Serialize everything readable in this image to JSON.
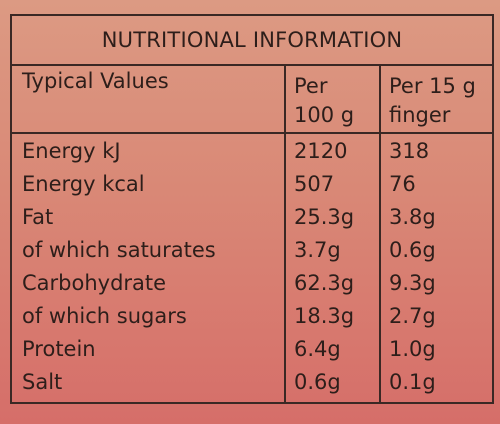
{
  "title": "NUTRITIONAL INFORMATION",
  "header": {
    "col1": "Typical Values",
    "col2_line1": "Per",
    "col2_line2": "100 g",
    "col3_line1": "Per 15 g",
    "col3_line2": "finger"
  },
  "rows": [
    {
      "label": "Energy kJ",
      "per100": "2120",
      "perFinger": "318"
    },
    {
      "label": "Energy kcal",
      "per100": "507",
      "perFinger": "76"
    },
    {
      "label": "Fat",
      "per100": "25.3g",
      "perFinger": "3.8g"
    },
    {
      "label": "of which saturates",
      "per100": "3.7g",
      "perFinger": "0.6g"
    },
    {
      "label": "Carbohydrate",
      "per100": "62.3g",
      "perFinger": "9.3g"
    },
    {
      "label": "of which sugars",
      "per100": "18.3g",
      "perFinger": "2.7g"
    },
    {
      "label": "Protein",
      "per100": "6.4g",
      "perFinger": "1.0g"
    },
    {
      "label": "Salt",
      "per100": "0.6g",
      "perFinger": "0.1g"
    }
  ]
}
